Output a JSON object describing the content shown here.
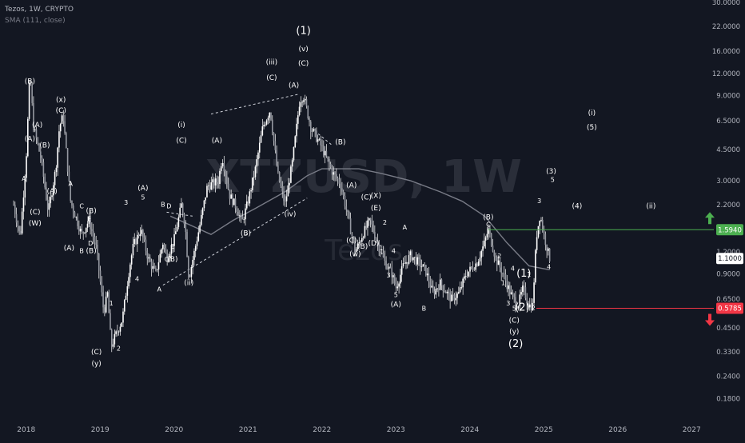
{
  "header": {
    "symbol_line": "Tezos, 1W, CRYPTO",
    "indicator_line": "SMA (111, close)"
  },
  "watermark": {
    "ticker": "XTZUSD",
    "interval": "1W",
    "name": "Tezos"
  },
  "chart_data": {
    "type": "candlestick",
    "title": "",
    "xlabel": "",
    "ylabel": "",
    "y_scale": "log",
    "ylim": [
      0.16,
      30
    ],
    "xlim": [
      2017.7,
      2027.3
    ],
    "grid": false,
    "x_ticks": [
      "2018",
      "2019",
      "2020",
      "2021",
      "2022",
      "2023",
      "2024",
      "2025",
      "2026",
      "2027"
    ],
    "y_ticks": [
      "30.0000",
      "22.0000",
      "16.0000",
      "12.0000",
      "9.0000",
      "6.5000",
      "4.5000",
      "3.0000",
      "2.2000",
      "1.5940",
      "1.2000",
      "1.1000",
      "0.9000",
      "0.6500",
      "0.5785",
      "0.4500",
      "0.3300",
      "0.2400",
      "0.1800"
    ],
    "price_path": [
      [
        2017.83,
        2.2
      ],
      [
        2017.92,
        1.45
      ],
      [
        2018.0,
        4.0
      ],
      [
        2018.05,
        12.0
      ],
      [
        2018.1,
        6.0
      ],
      [
        2018.2,
        4.0
      ],
      [
        2018.3,
        2.0
      ],
      [
        2018.4,
        3.5
      ],
      [
        2018.45,
        6.0
      ],
      [
        2018.5,
        7.0
      ],
      [
        2018.55,
        4.0
      ],
      [
        2018.6,
        2.3
      ],
      [
        2018.75,
        1.5
      ],
      [
        2018.85,
        1.8
      ],
      [
        2018.95,
        1.25
      ],
      [
        2019.05,
        0.55
      ],
      [
        2019.1,
        0.7
      ],
      [
        2019.15,
        0.35
      ],
      [
        2019.2,
        0.4
      ],
      [
        2019.3,
        0.5
      ],
      [
        2019.4,
        1.0
      ],
      [
        2019.45,
        1.3
      ],
      [
        2019.55,
        1.6
      ],
      [
        2019.65,
        1.1
      ],
      [
        2019.75,
        0.9
      ],
      [
        2019.85,
        1.35
      ],
      [
        2019.9,
        1.1
      ],
      [
        2020.0,
        1.4
      ],
      [
        2020.1,
        2.2
      ],
      [
        2020.15,
        1.7
      ],
      [
        2020.2,
        0.85
      ],
      [
        2020.35,
        1.7
      ],
      [
        2020.45,
        2.8
      ],
      [
        2020.6,
        3.0
      ],
      [
        2020.65,
        4.1
      ],
      [
        2020.75,
        2.5
      ],
      [
        2020.85,
        2.1
      ],
      [
        2020.92,
        1.75
      ],
      [
        2021.0,
        2.3
      ],
      [
        2021.1,
        3.5
      ],
      [
        2021.2,
        6.0
      ],
      [
        2021.3,
        7.5
      ],
      [
        2021.4,
        3.3
      ],
      [
        2021.5,
        2.2
      ],
      [
        2021.6,
        3.8
      ],
      [
        2021.7,
        8.5
      ],
      [
        2021.75,
        9.0
      ],
      [
        2021.85,
        6.0
      ],
      [
        2022.0,
        4.6
      ],
      [
        2022.15,
        3.3
      ],
      [
        2022.25,
        2.9
      ],
      [
        2022.35,
        1.9
      ],
      [
        2022.45,
        1.2
      ],
      [
        2022.55,
        1.5
      ],
      [
        2022.65,
        1.8
      ],
      [
        2022.75,
        1.35
      ],
      [
        2022.85,
        1.05
      ],
      [
        2022.95,
        0.9
      ],
      [
        2023.0,
        0.75
      ],
      [
        2023.1,
        1.0
      ],
      [
        2023.2,
        1.15
      ],
      [
        2023.3,
        1.05
      ],
      [
        2023.4,
        0.95
      ],
      [
        2023.5,
        0.7
      ],
      [
        2023.6,
        0.8
      ],
      [
        2023.75,
        0.65
      ],
      [
        2023.85,
        0.7
      ],
      [
        2023.95,
        0.9
      ],
      [
        2024.1,
        1.05
      ],
      [
        2024.2,
        1.35
      ],
      [
        2024.25,
        1.6
      ],
      [
        2024.35,
        1.1
      ],
      [
        2024.45,
        0.9
      ],
      [
        2024.55,
        0.7
      ],
      [
        2024.65,
        0.6
      ],
      [
        2024.72,
        0.75
      ],
      [
        2024.8,
        0.6
      ],
      [
        2024.85,
        0.6
      ],
      [
        2024.9,
        1.45
      ],
      [
        2024.95,
        1.95
      ],
      [
        2025.0,
        1.5
      ],
      [
        2025.08,
        1.1
      ]
    ],
    "sma_path": [
      [
        2019.95,
        1.9
      ],
      [
        2020.5,
        1.5
      ],
      [
        2020.8,
        1.8
      ],
      [
        2021.1,
        2.1
      ],
      [
        2021.5,
        2.6
      ],
      [
        2021.8,
        3.2
      ],
      [
        2022.0,
        3.5
      ],
      [
        2022.5,
        3.5
      ],
      [
        2022.8,
        3.3
      ],
      [
        2023.2,
        3.0
      ],
      [
        2023.6,
        2.6
      ],
      [
        2023.9,
        2.3
      ],
      [
        2024.2,
        1.9
      ],
      [
        2024.5,
        1.35
      ],
      [
        2024.8,
        1.0
      ],
      [
        2025.08,
        0.95
      ]
    ],
    "wedge_lines": [
      {
        "name": "upper",
        "from": [
          2020.5,
          7.1
        ],
        "to": [
          2021.7,
          9.2
        ]
      },
      {
        "name": "lower",
        "from": [
          2019.85,
          0.78
        ],
        "to": [
          2021.8,
          2.4
        ]
      }
    ],
    "correction_lines": [
      {
        "from": [
          2019.9,
          2.0
        ],
        "to": [
          2020.25,
          1.9
        ]
      },
      {
        "from": [
          2021.95,
          5.5
        ],
        "to": [
          2022.15,
          4.7
        ]
      }
    ],
    "horizontal_levels": [
      {
        "price": 1.594,
        "label": "1.5940",
        "color": "#4caf50",
        "from_x": 2024.25
      },
      {
        "price": 0.5785,
        "label": "0.5785",
        "color": "#f23645",
        "from_x": 2024.9
      }
    ],
    "current_price": {
      "price": 1.1,
      "label": "1.1000"
    },
    "wave_labels": [
      {
        "text": "(B)",
        "x": 2018.05,
        "price": 10.5
      },
      {
        "text": "(A)",
        "x": 2018.15,
        "price": 6.0
      },
      {
        "text": "(A)",
        "x": 2018.05,
        "price": 5.0
      },
      {
        "text": "A",
        "x": 2017.97,
        "price": 3.0
      },
      {
        "text": "(C)",
        "x": 2018.12,
        "price": 1.95
      },
      {
        "text": "(W)",
        "x": 2018.12,
        "price": 1.68
      },
      {
        "text": "(B)",
        "x": 2018.25,
        "price": 4.6
      },
      {
        "text": "(x)",
        "x": 2018.47,
        "price": 8.3
      },
      {
        "text": "(C)",
        "x": 2018.47,
        "price": 7.2
      },
      {
        "text": "(A)",
        "x": 2018.35,
        "price": 2.55
      },
      {
        "text": "A",
        "x": 2018.6,
        "price": 2.8
      },
      {
        "text": "C",
        "x": 2018.75,
        "price": 2.1
      },
      {
        "text": "(B)",
        "x": 2018.88,
        "price": 1.98
      },
      {
        "text": "E",
        "x": 2018.85,
        "price": 1.78
      },
      {
        "text": "D",
        "x": 2018.87,
        "price": 1.3
      },
      {
        "text": "(A)",
        "x": 2018.58,
        "price": 1.22
      },
      {
        "text": "B",
        "x": 2018.75,
        "price": 1.18
      },
      {
        "text": "(B)",
        "x": 2018.88,
        "price": 1.18
      },
      {
        "text": "1",
        "x": 2019.15,
        "price": 0.6
      },
      {
        "text": "2",
        "x": 2019.25,
        "price": 0.335
      },
      {
        "text": "(C)",
        "x": 2018.95,
        "price": 0.32
      },
      {
        "text": "(y)",
        "x": 2018.95,
        "price": 0.275
      },
      {
        "text": "3",
        "x": 2019.35,
        "price": 2.2
      },
      {
        "text": "(A)",
        "x": 2019.58,
        "price": 2.65
      },
      {
        "text": "5",
        "x": 2019.58,
        "price": 2.35
      },
      {
        "text": "B",
        "x": 2019.85,
        "price": 2.15
      },
      {
        "text": "D",
        "x": 2019.93,
        "price": 2.1
      },
      {
        "text": "4",
        "x": 2019.5,
        "price": 0.82
      },
      {
        "text": "A",
        "x": 2019.8,
        "price": 0.72
      },
      {
        "text": "C",
        "x": 2019.9,
        "price": 1.06
      },
      {
        "text": "E",
        "x": 2019.98,
        "price": 1.25
      },
      {
        "text": "(B)",
        "x": 2019.98,
        "price": 1.06
      },
      {
        "text": "(ii)",
        "x": 2020.2,
        "price": 0.78
      },
      {
        "text": "(i)",
        "x": 2020.1,
        "price": 6.0
      },
      {
        "text": "(C)",
        "x": 2020.1,
        "price": 4.9
      },
      {
        "text": "(A)",
        "x": 2020.58,
        "price": 4.9
      },
      {
        "text": "(B)",
        "x": 2020.97,
        "price": 1.48
      },
      {
        "text": "(iii)",
        "x": 2021.32,
        "price": 13.5
      },
      {
        "text": "(C)",
        "x": 2021.32,
        "price": 11.0
      },
      {
        "text": "(1)",
        "x": 2021.75,
        "price": 20.0
      },
      {
        "text": "(v)",
        "x": 2021.75,
        "price": 16.0
      },
      {
        "text": "(C)",
        "x": 2021.75,
        "price": 13.3
      },
      {
        "text": "(A)",
        "x": 2021.62,
        "price": 10.0
      },
      {
        "text": "(iv)",
        "x": 2021.57,
        "price": 1.9
      },
      {
        "text": "(B)",
        "x": 2022.25,
        "price": 4.8
      },
      {
        "text": "(A)",
        "x": 2022.4,
        "price": 2.75
      },
      {
        "text": "(X)",
        "x": 2022.73,
        "price": 2.4
      },
      {
        "text": "(C)",
        "x": 2022.6,
        "price": 2.35
      },
      {
        "text": "(E)",
        "x": 2022.73,
        "price": 2.05
      },
      {
        "text": "2",
        "x": 2022.85,
        "price": 1.7
      },
      {
        "text": "(C)",
        "x": 2022.4,
        "price": 1.35
      },
      {
        "text": "(B)",
        "x": 2022.55,
        "price": 1.25
      },
      {
        "text": "(D)",
        "x": 2022.7,
        "price": 1.3
      },
      {
        "text": "(w)",
        "x": 2022.45,
        "price": 1.13
      },
      {
        "text": "1",
        "x": 2022.8,
        "price": 1.22
      },
      {
        "text": "4",
        "x": 2022.97,
        "price": 1.18
      },
      {
        "text": "3",
        "x": 2022.9,
        "price": 0.86
      },
      {
        "text": "5",
        "x": 2023.0,
        "price": 0.67
      },
      {
        "text": "(A)",
        "x": 2023.0,
        "price": 0.59
      },
      {
        "text": "A",
        "x": 2023.12,
        "price": 1.6
      },
      {
        "text": "B",
        "x": 2023.38,
        "price": 0.56
      },
      {
        "text": "(B)",
        "x": 2024.25,
        "price": 1.82
      },
      {
        "text": "C",
        "x": 2024.25,
        "price": 1.66
      },
      {
        "text": "2",
        "x": 2024.4,
        "price": 1.1
      },
      {
        "text": "4",
        "x": 2024.58,
        "price": 0.94
      },
      {
        "text": "1",
        "x": 2024.45,
        "price": 0.78
      },
      {
        "text": "3",
        "x": 2024.52,
        "price": 0.6
      },
      {
        "text": "5",
        "x": 2024.6,
        "price": 0.56
      },
      {
        "text": "(C)",
        "x": 2024.6,
        "price": 0.48
      },
      {
        "text": "(y)",
        "x": 2024.6,
        "price": 0.415
      },
      {
        "text": "(2)",
        "x": 2024.62,
        "price": 0.35
      },
      {
        "text": "(1)",
        "x": 2024.73,
        "price": 0.87
      },
      {
        "text": "1",
        "x": 2024.8,
        "price": 0.87
      },
      {
        "text": "(2)",
        "x": 2024.71,
        "price": 0.56
      },
      {
        "text": "2",
        "x": 2024.86,
        "price": 0.565
      },
      {
        "text": "3",
        "x": 2024.94,
        "price": 2.25
      },
      {
        "text": "4",
        "x": 2025.07,
        "price": 0.96
      },
      {
        "text": "(3)",
        "x": 2025.1,
        "price": 3.3
      },
      {
        "text": "5",
        "x": 2025.12,
        "price": 2.95
      },
      {
        "text": "(i)",
        "x": 2025.65,
        "price": 7.0
      },
      {
        "text": "(5)",
        "x": 2025.65,
        "price": 5.8
      },
      {
        "text": "(4)",
        "x": 2025.45,
        "price": 2.1
      },
      {
        "text": "(ii)",
        "x": 2026.45,
        "price": 2.1
      }
    ]
  },
  "colors": {
    "background": "#131722",
    "candles": "#ffffff",
    "sma": "#787b86",
    "labels": "#ffffff",
    "axis_text": "#b2b5be",
    "resistance": "#4caf50",
    "support": "#f23645",
    "current_price_bg": "#ffffff",
    "up_arrow": "#4caf50",
    "down_arrow": "#f23645"
  },
  "icons": {
    "target_up": "arrow-up-icon",
    "target_down": "arrow-down-icon"
  }
}
